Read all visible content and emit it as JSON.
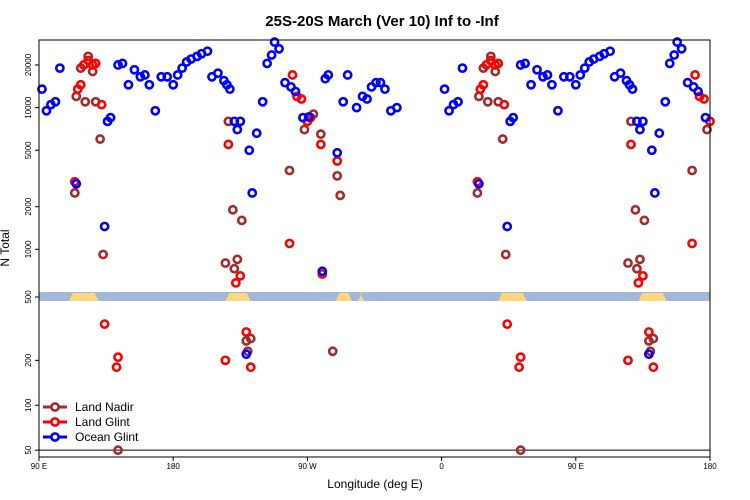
{
  "chart_data": {
    "type": "scatter",
    "title": "25S-20S March (Ver 10)   Inf to -Inf",
    "xlabel": "Longitude (deg E)",
    "ylabel": "N Total",
    "x_tick_labels": [
      "90 E",
      "180",
      "90 W",
      "0",
      "90 E",
      "180"
    ],
    "y_tick_labels": [
      "50",
      "100",
      "200",
      "500",
      "1000",
      "2000",
      "5000",
      "10000",
      "20000"
    ],
    "reference_line_y": 50,
    "land_band_colors": {
      "ocean": "#a2b8d8",
      "land": "#fcd87a"
    },
    "series": [
      {
        "name": "Land Nadir",
        "color": "#a52a2a",
        "points": [
          [
            114,
            2500
          ],
          [
            115,
            12000
          ],
          [
            118,
            19000
          ],
          [
            121,
            11000
          ],
          [
            123,
            23000
          ],
          [
            126,
            18000
          ],
          [
            128,
            11000
          ],
          [
            131,
            6000
          ],
          [
            133,
            920
          ],
          [
            143,
            50
          ],
          [
            215,
            800
          ],
          [
            217,
            8000
          ],
          [
            220,
            1900
          ],
          [
            221,
            730
          ],
          [
            223,
            850
          ],
          [
            226,
            1600
          ],
          [
            229,
            270
          ],
          [
            230,
            230
          ],
          [
            232,
            280
          ],
          [
            258,
            3600
          ],
          [
            268,
            7000
          ],
          [
            272,
            8500
          ],
          [
            274,
            9000
          ],
          [
            279,
            6500
          ],
          [
            290,
            3300
          ],
          [
            292,
            2400
          ],
          [
            287,
            230
          ]
        ],
        "repeat_offset": 0
      },
      {
        "name": "Land Glint",
        "color": "#ff0000",
        "points": [
          [
            114,
            3000
          ],
          [
            116,
            13500
          ],
          [
            118,
            14500
          ],
          [
            120,
            20000
          ],
          [
            123,
            21500
          ],
          [
            126,
            20000
          ],
          [
            128,
            20500
          ],
          [
            132,
            10500
          ],
          [
            134,
            350
          ],
          [
            142,
            180
          ],
          [
            143,
            210
          ],
          [
            215,
            200
          ],
          [
            217,
            5500
          ],
          [
            222,
            580
          ],
          [
            225,
            650
          ],
          [
            229,
            310
          ],
          [
            232,
            180
          ],
          [
            258,
            1100
          ],
          [
            260,
            17000
          ],
          [
            263,
            12000
          ],
          [
            266,
            11500
          ],
          [
            270,
            8000
          ],
          [
            272,
            8500
          ],
          [
            279,
            5500
          ],
          [
            280,
            670
          ],
          [
            290,
            4200
          ]
        ]
      },
      {
        "name": "Ocean Glint",
        "color": "#0000ff",
        "points": [
          [
            92,
            13500
          ],
          [
            95,
            9500
          ],
          [
            98,
            10500
          ],
          [
            101,
            11000
          ],
          [
            104,
            19000
          ],
          [
            115,
            2900
          ],
          [
            134,
            1450
          ],
          [
            136,
            8000
          ],
          [
            138,
            8500
          ],
          [
            143,
            20000
          ],
          [
            146,
            20500
          ],
          [
            150,
            14500
          ],
          [
            154,
            18500
          ],
          [
            158,
            16500
          ],
          [
            161,
            17000
          ],
          [
            164,
            14500
          ],
          [
            168,
            9500
          ],
          [
            172,
            16500
          ],
          [
            176,
            16500
          ],
          [
            180,
            14500
          ],
          [
            183,
            17000
          ],
          [
            186,
            19000
          ],
          [
            189,
            21000
          ],
          [
            192,
            22000
          ],
          [
            196,
            23000
          ],
          [
            199,
            24000
          ],
          [
            203,
            25000
          ],
          [
            206,
            16500
          ],
          [
            210,
            17500
          ],
          [
            214,
            15500
          ],
          [
            216,
            14500
          ],
          [
            218,
            13500
          ],
          [
            221,
            8000
          ],
          [
            223,
            7000
          ],
          [
            225,
            8000
          ],
          [
            229,
            220
          ],
          [
            231,
            5000
          ],
          [
            233,
            2500
          ],
          [
            236,
            6600
          ],
          [
            240,
            11000
          ],
          [
            243,
            20500
          ],
          [
            246,
            23500
          ],
          [
            248,
            29000
          ],
          [
            251,
            26000
          ],
          [
            255,
            15000
          ],
          [
            259,
            14000
          ],
          [
            262,
            13000
          ],
          [
            267,
            8500
          ],
          [
            271,
            8600
          ],
          [
            280,
            700
          ],
          [
            282,
            16000
          ],
          [
            284,
            17000
          ],
          [
            290,
            4800
          ],
          [
            294,
            11000
          ],
          [
            297,
            17000
          ],
          [
            303,
            10000
          ],
          [
            307,
            12000
          ],
          [
            310,
            11500
          ],
          [
            313,
            14000
          ],
          [
            316,
            15000
          ],
          [
            319,
            15000
          ],
          [
            322,
            13500
          ],
          [
            326,
            9500
          ],
          [
            330,
            10000
          ]
        ]
      }
    ],
    "legend": {
      "position": "bottom-left",
      "entries": [
        "Land Nadir",
        "Land Glint",
        "Ocean Glint"
      ]
    }
  }
}
